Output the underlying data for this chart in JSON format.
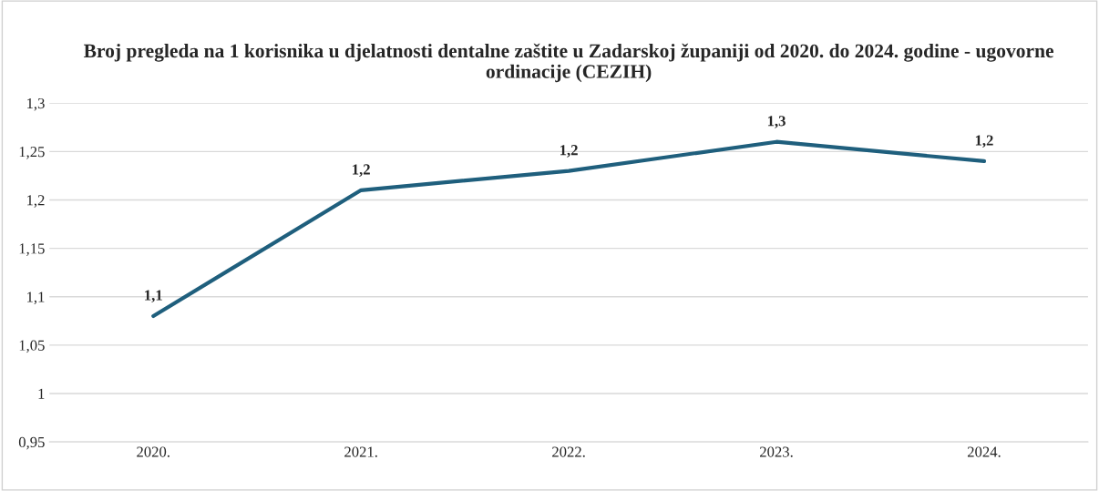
{
  "chart_data": {
    "type": "line",
    "title": "Broj pregleda na 1 korisnika u djelatnosti dentalne zaštite u Zadarskoj županiji od 2020. do 2024. godine - ugovorne ordinacije (CEZIH)",
    "categories": [
      "2020.",
      "2021.",
      "2022.",
      "2023.",
      "2024."
    ],
    "series": [
      {
        "color": "#1f5f7d",
        "values": [
          1.08,
          1.21,
          1.23,
          1.26,
          1.24
        ],
        "value_labels": [
          "1,1",
          "1,2",
          "1,2",
          "1,3",
          "1,2"
        ]
      }
    ],
    "ylim": [
      0.95,
      1.3
    ],
    "yticks": [
      {
        "value": 0.95,
        "label": "0,95"
      },
      {
        "value": 1,
        "label": "1"
      },
      {
        "value": 1.05,
        "label": "1,05"
      },
      {
        "value": 1.1,
        "label": "1,1"
      },
      {
        "value": 1.15,
        "label": "1,15"
      },
      {
        "value": 1.2,
        "label": "1,2"
      },
      {
        "value": 1.25,
        "label": "1,25"
      },
      {
        "value": 1.3,
        "label": "1,3"
      }
    ],
    "grid": "y",
    "marker": "none",
    "line_style": "solid"
  }
}
